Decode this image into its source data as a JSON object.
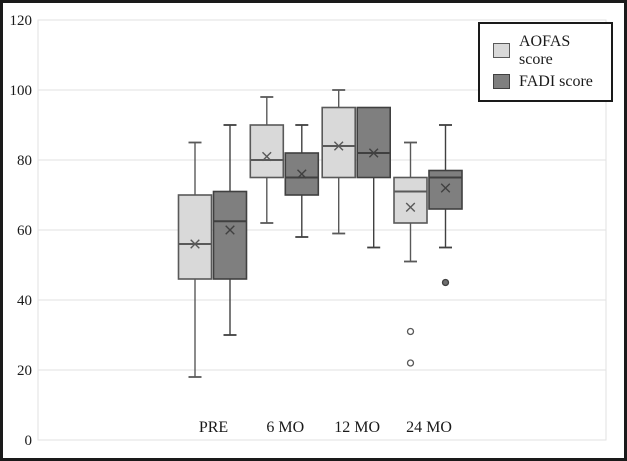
{
  "chart_data": {
    "type": "boxplot",
    "title": "",
    "xlabel": "",
    "ylabel": "",
    "categories": [
      "PRE",
      "6 MO",
      "12 MO",
      "24 MO"
    ],
    "y_axis": {
      "min": 0,
      "max": 120,
      "tick_step": 20,
      "ticks": [
        0,
        20,
        40,
        60,
        80,
        100,
        120
      ]
    },
    "grid": "horizontal",
    "legend_position": "top-right",
    "colors": {
      "background": "#ffffff",
      "gridline": "#e2e2e2",
      "plot_border": "#e2e2e2",
      "text": "#1a1a1a",
      "frame": "#1a1a1a"
    },
    "series": [
      {
        "name": "AOFAS score",
        "fill": "#d9d9d9",
        "stroke": "#595959",
        "outlier_fill": "#ffffff",
        "boxes": [
          {
            "category": "PRE",
            "min": 18,
            "q1": 46,
            "median": 56,
            "mean": 56,
            "q3": 70,
            "max": 85,
            "outliers": []
          },
          {
            "category": "6 MO",
            "min": 62,
            "q1": 75,
            "median": 80,
            "mean": 81,
            "q3": 90,
            "max": 98,
            "outliers": []
          },
          {
            "category": "12 MO",
            "min": 59,
            "q1": 75,
            "median": 84,
            "mean": 84,
            "q3": 95,
            "max": 100,
            "outliers": []
          },
          {
            "category": "24 MO",
            "min": 51,
            "q1": 62,
            "median": 71,
            "mean": 66.5,
            "q3": 75,
            "max": 85,
            "outliers": [
              31,
              22
            ]
          }
        ]
      },
      {
        "name": "FADI score",
        "fill": "#7f7f7f",
        "stroke": "#404040",
        "outlier_fill": "#6e6e6e",
        "boxes": [
          {
            "category": "PRE",
            "min": 30,
            "q1": 46,
            "median": 62.5,
            "mean": 60,
            "q3": 71,
            "max": 90,
            "outliers": []
          },
          {
            "category": "6 MO",
            "min": 58,
            "q1": 70,
            "median": 75,
            "mean": 76,
            "q3": 82,
            "max": 90,
            "outliers": []
          },
          {
            "category": "12 MO",
            "min": 55,
            "q1": 75,
            "median": 82,
            "mean": 82,
            "q3": 95,
            "max": 95,
            "outliers": []
          },
          {
            "category": "24 MO",
            "min": 55,
            "q1": 66,
            "median": 75,
            "mean": 72,
            "q3": 77,
            "max": 90,
            "outliers": [
              45
            ]
          }
        ]
      }
    ]
  }
}
